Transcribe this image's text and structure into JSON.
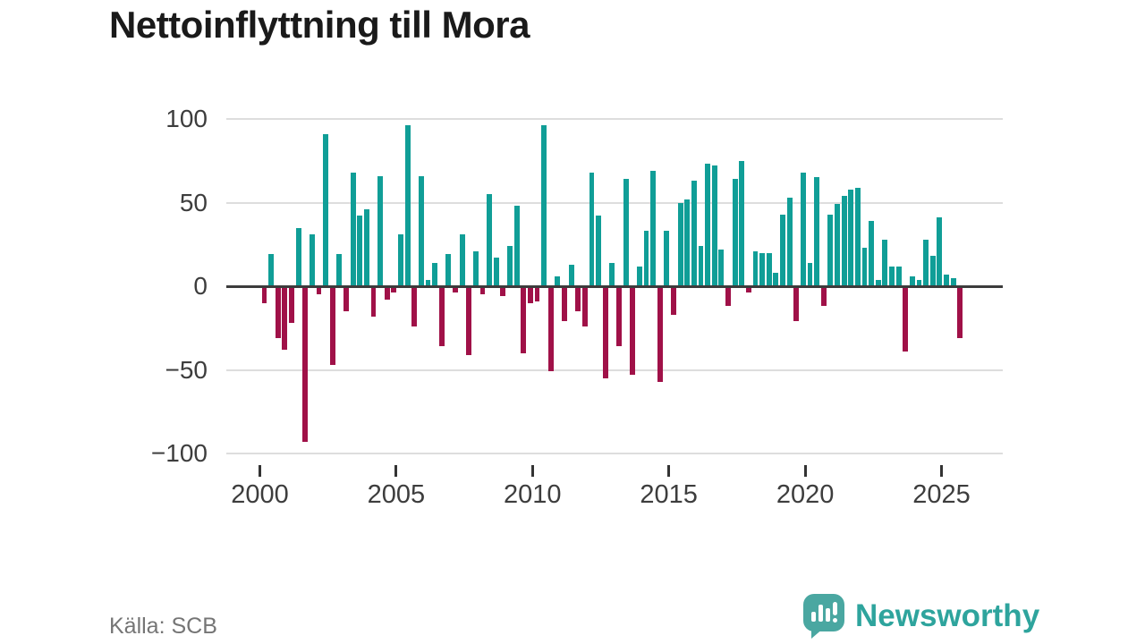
{
  "title": "Nettoinflyttning till Mora",
  "footer": {
    "source": "Källa: SCB",
    "brand": "Newsworthy"
  },
  "colors": {
    "positive_bar": "#109e97",
    "negative_bar": "#a01148",
    "gridline": "#dddddd",
    "zero_line": "#3c3c3c",
    "title_text": "#1a1a1a",
    "axis_text": "#3d3d3d",
    "source_text": "#757575",
    "brand_teal": "#2ea49d"
  },
  "chart_data": {
    "type": "bar",
    "title": "Nettoinflyttning till Mora",
    "xlabel": "",
    "ylabel": "",
    "ylim": [
      -100,
      100
    ],
    "grid": "horizontal",
    "legend": "none",
    "frequency": "quarterly",
    "x_start": "2000 K1",
    "x_end": "2025 K3",
    "x_tick_labels": [
      "2000",
      "2005",
      "2010",
      "2015",
      "2020",
      "2025"
    ],
    "y_tick_labels": [
      "100",
      "50",
      "0",
      "−50",
      "−100"
    ],
    "y_tick_values": [
      100,
      50,
      0,
      -50,
      -100
    ],
    "series_name": "Nettoinflyttning till Mora (personer per kvartal)",
    "values_by_year": {
      "2000": [
        -10,
        19,
        -31,
        -38
      ],
      "2001": [
        -22,
        35,
        -93,
        31
      ],
      "2002": [
        -5,
        91,
        -47,
        19
      ],
      "2003": [
        -15,
        68,
        42,
        46
      ],
      "2004": [
        -18,
        66,
        -8,
        -4
      ],
      "2005": [
        31,
        96,
        -24,
        66
      ],
      "2006": [
        4,
        14,
        -36,
        19
      ],
      "2007": [
        -4,
        31,
        -41,
        21
      ],
      "2008": [
        -5,
        55,
        17,
        -6
      ],
      "2009": [
        24,
        48,
        -40,
        -10
      ],
      "2010": [
        -9,
        96,
        -51,
        6
      ],
      "2011": [
        -21,
        13,
        -15,
        -24
      ],
      "2012": [
        68,
        42,
        -55,
        14
      ],
      "2013": [
        -36,
        64,
        -53,
        12
      ],
      "2014": [
        33,
        69,
        -57,
        33
      ],
      "2015": [
        -17,
        50,
        52,
        63
      ],
      "2016": [
        24,
        73,
        72,
        22
      ],
      "2017": [
        -12,
        64,
        75,
        -4
      ],
      "2018": [
        21,
        20,
        20,
        8
      ],
      "2019": [
        43,
        53,
        -21,
        68
      ],
      "2020": [
        14,
        65,
        -12,
        43
      ],
      "2021": [
        49,
        54,
        58,
        59
      ],
      "2022": [
        23,
        39,
        4,
        28
      ],
      "2023": [
        12,
        12,
        -39,
        6
      ],
      "2024": [
        4,
        28,
        18,
        41
      ],
      "2025": [
        7,
        5,
        -31
      ]
    }
  }
}
